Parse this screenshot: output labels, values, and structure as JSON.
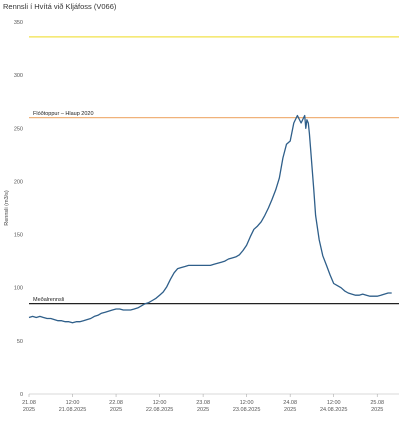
{
  "title": "Rennsli í Hvítá við Kljáfoss (V066)",
  "chart_data": {
    "type": "line",
    "title": "Rennsli í Hvítá við Kljáfoss (V066)",
    "ylabel": "Rennsli (m3/s)",
    "xlabel": "",
    "ylim": [
      0,
      350
    ],
    "yticks": [
      0,
      50,
      100,
      150,
      200,
      250,
      300,
      350
    ],
    "xlim_hours": [
      0,
      102
    ],
    "xticks": [
      {
        "hour": 0,
        "label1": "21.08",
        "label2": "2025"
      },
      {
        "hour": 12,
        "label1": "12:00",
        "label2": "21.08.2025"
      },
      {
        "hour": 24,
        "label1": "22.08",
        "label2": "2025"
      },
      {
        "hour": 36,
        "label1": "12:00",
        "label2": "22.08.2025"
      },
      {
        "hour": 48,
        "label1": "23.08",
        "label2": "2025"
      },
      {
        "hour": 60,
        "label1": "12:00",
        "label2": "23.08.2025"
      },
      {
        "hour": 72,
        "label1": "24.08",
        "label2": "2025"
      },
      {
        "hour": 84,
        "label1": "12:00",
        "label2": "24.08.2025"
      },
      {
        "hour": 96,
        "label1": "25.08",
        "label2": "2025"
      }
    ],
    "grid": false,
    "reference_lines": [
      {
        "value": 336,
        "label": "",
        "color": "#f2e24a"
      },
      {
        "value": 260,
        "label": "Flóðtoppur – Hlaup 2020",
        "color": "#f0b27a"
      },
      {
        "value": 85,
        "label": "Meðalrennsli",
        "color": "#222222"
      }
    ],
    "series": [
      {
        "color": "#2f5f8a",
        "x": [
          0,
          1,
          2,
          3,
          4,
          5,
          6,
          7,
          8,
          9,
          10,
          11,
          12,
          13,
          14,
          15,
          16,
          17,
          18,
          19,
          20,
          21,
          22,
          23,
          24,
          25,
          26,
          27,
          28,
          29,
          30,
          31,
          32,
          33,
          34,
          35,
          36,
          37,
          38,
          39,
          40,
          41,
          42,
          43,
          44,
          45,
          46,
          47,
          48,
          49,
          50,
          51,
          52,
          53,
          54,
          55,
          56,
          57,
          58,
          59,
          60,
          61,
          62,
          63,
          64,
          65,
          66,
          67,
          68,
          69,
          70,
          71,
          72,
          73,
          74,
          75,
          76,
          76.3,
          76.6,
          77,
          77.3,
          77.6,
          78,
          78.5,
          79,
          80,
          81,
          82,
          83,
          84,
          85,
          86,
          87,
          88,
          89,
          90,
          91,
          92,
          93,
          94,
          95,
          96,
          97,
          98,
          99,
          100
        ],
        "values": [
          72,
          73,
          72,
          73,
          72,
          71,
          71,
          70,
          69,
          69,
          68,
          68,
          67,
          68,
          68,
          69,
          70,
          71,
          73,
          74,
          76,
          77,
          78,
          79,
          80,
          80,
          79,
          79,
          79,
          80,
          81,
          83,
          85,
          86,
          88,
          90,
          93,
          96,
          101,
          108,
          114,
          118,
          119,
          120,
          121,
          121,
          121,
          121,
          121,
          121,
          121,
          122,
          123,
          124,
          125,
          127,
          128,
          129,
          131,
          135,
          140,
          148,
          155,
          158,
          162,
          168,
          175,
          183,
          192,
          203,
          222,
          235,
          238,
          255,
          262,
          255,
          262,
          250,
          258,
          255,
          245,
          232,
          215,
          192,
          168,
          145,
          130,
          121,
          112,
          104,
          102,
          100,
          97,
          95,
          94,
          93,
          93,
          94,
          93,
          92,
          92,
          92,
          93,
          94,
          95,
          95
        ]
      }
    ]
  }
}
